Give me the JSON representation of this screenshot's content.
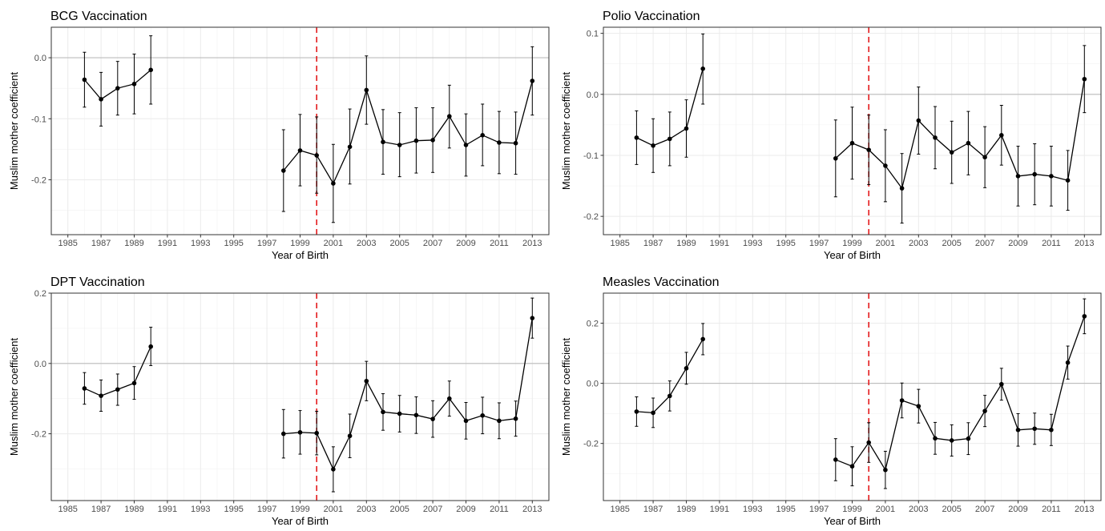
{
  "chart_data": [
    {
      "type": "line",
      "title": "BCG Vaccination",
      "xlabel": "Year of Birth",
      "ylabel": "Muslim mother coefficient",
      "xlim": [
        1984,
        2014
      ],
      "ylim": [
        -0.29,
        0.05
      ],
      "xticks": [
        1985,
        1987,
        1989,
        1991,
        1993,
        1995,
        1997,
        1999,
        2001,
        2003,
        2005,
        2007,
        2009,
        2011,
        2013
      ],
      "yticks": [
        -0.2,
        -0.1,
        0.0
      ],
      "ytick_labels": [
        "-0.2",
        "-0.1",
        "0.0"
      ],
      "reference_line_y": 0,
      "vline_x": 2000,
      "vline_color": "#e41a1c",
      "grid": true,
      "series": [
        {
          "x": [
            1986,
            1987,
            1988,
            1989,
            1990
          ],
          "y": [
            -0.036,
            -0.068,
            -0.05,
            -0.043,
            -0.02
          ],
          "lower": [
            -0.081,
            -0.112,
            -0.094,
            -0.092,
            -0.076
          ],
          "upper": [
            0.009,
            -0.024,
            -0.006,
            0.006,
            0.036
          ]
        },
        {
          "x": [
            1998,
            1999,
            2000,
            2001,
            2002,
            2003,
            2004,
            2005,
            2006,
            2007,
            2008,
            2009,
            2010,
            2011,
            2012,
            2013
          ],
          "y": [
            -0.185,
            -0.152,
            -0.16,
            -0.206,
            -0.146,
            -0.053,
            -0.138,
            -0.143,
            -0.136,
            -0.135,
            -0.096,
            -0.143,
            -0.127,
            -0.139,
            -0.14,
            -0.038
          ],
          "lower": [
            -0.252,
            -0.21,
            -0.222,
            -0.27,
            -0.207,
            -0.109,
            -0.191,
            -0.195,
            -0.189,
            -0.188,
            -0.148,
            -0.194,
            -0.177,
            -0.19,
            -0.191,
            -0.094
          ],
          "upper": [
            -0.118,
            -0.093,
            -0.097,
            -0.142,
            -0.084,
            0.003,
            -0.085,
            -0.09,
            -0.082,
            -0.082,
            -0.045,
            -0.092,
            -0.076,
            -0.088,
            -0.089,
            0.018
          ]
        }
      ]
    },
    {
      "type": "line",
      "title": "Polio Vaccination",
      "xlabel": "Year of Birth",
      "ylabel": "Muslim mother coefficient",
      "xlim": [
        1984,
        2014
      ],
      "ylim": [
        -0.23,
        0.11
      ],
      "xticks": [
        1985,
        1987,
        1989,
        1991,
        1993,
        1995,
        1997,
        1999,
        2001,
        2003,
        2005,
        2007,
        2009,
        2011,
        2013
      ],
      "yticks": [
        -0.2,
        -0.1,
        0.0,
        0.1
      ],
      "ytick_labels": [
        "-0.2",
        "-0.1",
        "0.0",
        "0.1"
      ],
      "reference_line_y": 0,
      "vline_x": 2000,
      "vline_color": "#e41a1c",
      "grid": true,
      "series": [
        {
          "x": [
            1986,
            1987,
            1988,
            1989,
            1990
          ],
          "y": [
            -0.071,
            -0.084,
            -0.073,
            -0.056,
            0.042
          ],
          "lower": [
            -0.115,
            -0.128,
            -0.117,
            -0.103,
            -0.016
          ],
          "upper": [
            -0.027,
            -0.04,
            -0.029,
            -0.009,
            0.099
          ]
        },
        {
          "x": [
            1998,
            1999,
            2000,
            2001,
            2002,
            2003,
            2004,
            2005,
            2006,
            2007,
            2008,
            2009,
            2010,
            2011,
            2012,
            2013
          ],
          "y": [
            -0.105,
            -0.08,
            -0.091,
            -0.117,
            -0.154,
            -0.043,
            -0.071,
            -0.095,
            -0.08,
            -0.103,
            -0.067,
            -0.134,
            -0.131,
            -0.134,
            -0.141,
            0.025
          ],
          "lower": [
            -0.168,
            -0.139,
            -0.148,
            -0.176,
            -0.211,
            -0.098,
            -0.122,
            -0.146,
            -0.132,
            -0.153,
            -0.116,
            -0.183,
            -0.181,
            -0.183,
            -0.19,
            -0.03
          ],
          "upper": [
            -0.042,
            -0.021,
            -0.034,
            -0.058,
            -0.097,
            0.012,
            -0.02,
            -0.044,
            -0.028,
            -0.053,
            -0.018,
            -0.085,
            -0.081,
            -0.085,
            -0.092,
            0.08
          ]
        }
      ]
    },
    {
      "type": "line",
      "title": "DPT Vaccination",
      "xlabel": "Year of Birth",
      "ylabel": "Muslim mother coefficient",
      "xlim": [
        1984,
        2014
      ],
      "ylim": [
        -0.39,
        0.2
      ],
      "xticks": [
        1985,
        1987,
        1989,
        1991,
        1993,
        1995,
        1997,
        1999,
        2001,
        2003,
        2005,
        2007,
        2009,
        2011,
        2013
      ],
      "yticks": [
        -0.2,
        0.0,
        0.2
      ],
      "ytick_labels": [
        "-0.2",
        "0.0",
        "0.2"
      ],
      "reference_line_y": 0,
      "vline_x": 2000,
      "vline_color": "#e41a1c",
      "grid": true,
      "series": [
        {
          "x": [
            1986,
            1987,
            1988,
            1989,
            1990
          ],
          "y": [
            -0.071,
            -0.092,
            -0.074,
            -0.056,
            0.048
          ],
          "lower": [
            -0.116,
            -0.136,
            -0.119,
            -0.102,
            -0.006
          ],
          "upper": [
            -0.026,
            -0.047,
            -0.03,
            -0.009,
            0.103
          ]
        },
        {
          "x": [
            1998,
            1999,
            2000,
            2001,
            2002,
            2003,
            2004,
            2005,
            2006,
            2007,
            2008,
            2009,
            2010,
            2011,
            2012,
            2013
          ],
          "y": [
            -0.2,
            -0.196,
            -0.198,
            -0.301,
            -0.206,
            -0.05,
            -0.138,
            -0.143,
            -0.147,
            -0.158,
            -0.1,
            -0.163,
            -0.148,
            -0.163,
            -0.157,
            0.129
          ],
          "lower": [
            -0.269,
            -0.258,
            -0.26,
            -0.365,
            -0.268,
            -0.106,
            -0.19,
            -0.195,
            -0.199,
            -0.21,
            -0.15,
            -0.215,
            -0.2,
            -0.214,
            -0.207,
            0.072
          ],
          "upper": [
            -0.131,
            -0.134,
            -0.136,
            -0.237,
            -0.144,
            0.006,
            -0.086,
            -0.091,
            -0.095,
            -0.106,
            -0.05,
            -0.111,
            -0.096,
            -0.112,
            -0.107,
            0.186
          ]
        }
      ]
    },
    {
      "type": "line",
      "title": "Measles Vaccination",
      "xlabel": "Year of Birth",
      "ylabel": "Muslim mother coefficient",
      "xlim": [
        1984,
        2014
      ],
      "ylim": [
        -0.39,
        0.3
      ],
      "xticks": [
        1985,
        1987,
        1989,
        1991,
        1993,
        1995,
        1997,
        1999,
        2001,
        2003,
        2005,
        2007,
        2009,
        2011,
        2013
      ],
      "yticks": [
        -0.2,
        0.0,
        0.2
      ],
      "ytick_labels": [
        "-0.2",
        "0.0",
        "0.2"
      ],
      "reference_line_y": 0,
      "vline_x": 2000,
      "vline_color": "#e41a1c",
      "grid": true,
      "series": [
        {
          "x": [
            1986,
            1987,
            1988,
            1989,
            1990
          ],
          "y": [
            -0.094,
            -0.098,
            -0.042,
            0.05,
            0.147
          ],
          "lower": [
            -0.143,
            -0.147,
            -0.092,
            -0.003,
            0.095
          ],
          "upper": [
            -0.045,
            -0.049,
            0.008,
            0.103,
            0.199
          ]
        },
        {
          "x": [
            1998,
            1999,
            2000,
            2001,
            2002,
            2003,
            2004,
            2005,
            2006,
            2007,
            2008,
            2009,
            2010,
            2011,
            2012,
            2013
          ],
          "y": [
            -0.254,
            -0.276,
            -0.197,
            -0.288,
            -0.057,
            -0.076,
            -0.183,
            -0.19,
            -0.184,
            -0.092,
            -0.003,
            -0.155,
            -0.151,
            -0.155,
            0.069,
            0.223
          ],
          "lower": [
            -0.324,
            -0.341,
            -0.263,
            -0.35,
            -0.115,
            -0.132,
            -0.236,
            -0.242,
            -0.237,
            -0.144,
            -0.056,
            -0.209,
            -0.203,
            -0.207,
            0.014,
            0.165
          ],
          "upper": [
            -0.184,
            -0.211,
            -0.131,
            -0.226,
            0.001,
            -0.02,
            -0.13,
            -0.138,
            -0.131,
            -0.04,
            0.05,
            -0.101,
            -0.099,
            -0.103,
            0.124,
            0.281
          ]
        }
      ]
    }
  ]
}
